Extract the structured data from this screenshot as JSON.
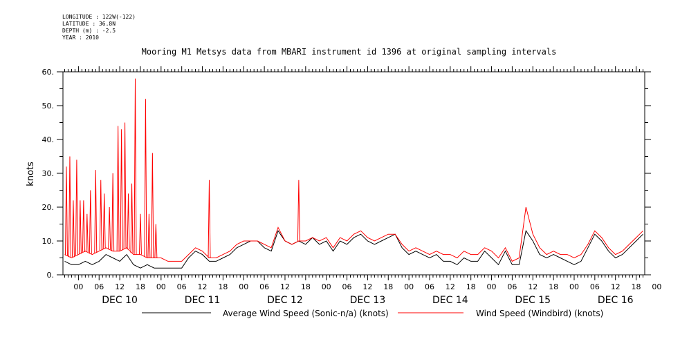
{
  "meta": {
    "longitude": "LONGITUDE : 122W(-122)",
    "latitude": "LATITUDE : 36.8N",
    "depth": "DEPTH (m) : -2.5",
    "year": "YEAR : 2010"
  },
  "chart_data": {
    "type": "line",
    "title": "Mooring M1 Metsys data from MBARI instrument id 1396 at original sampling intervals",
    "ylabel": "knots",
    "xlabel": "",
    "ylim": [
      0,
      60
    ],
    "yticks": [
      "0.",
      "10.",
      "20.",
      "30.",
      "40.",
      "50.",
      "60."
    ],
    "hour_tick_labels": [
      "00",
      "06",
      "12",
      "18",
      "00",
      "06",
      "12",
      "18",
      "00",
      "06",
      "12",
      "18",
      "00",
      "06",
      "12",
      "18",
      "00",
      "06",
      "12",
      "18",
      "00",
      "06",
      "12",
      "18",
      "00",
      "06",
      "12",
      "18",
      "00"
    ],
    "day_labels": [
      "DEC 10",
      "DEC 11",
      "DEC 12",
      "DEC 13",
      "DEC 14",
      "DEC 15",
      "DEC 16"
    ],
    "x_range_hours": [
      -4.5,
      164.5
    ],
    "grid": false,
    "legend_position": "bottom",
    "series": [
      {
        "name": "Average Wind Speed (Sonic-n/a) (knots)",
        "color": "#000000",
        "x": [
          -4,
          -2,
          0,
          2,
          4,
          6,
          8,
          10,
          12,
          14,
          16,
          18,
          20,
          22,
          24,
          26,
          28,
          30,
          32,
          34,
          36,
          38,
          40,
          42,
          44,
          46,
          48,
          50,
          52,
          54,
          56,
          58,
          60,
          62,
          64,
          66,
          68,
          70,
          72,
          74,
          76,
          78,
          80,
          82,
          84,
          86,
          88,
          90,
          92,
          94,
          96,
          98,
          100,
          102,
          104,
          106,
          108,
          110,
          112,
          114,
          116,
          118,
          120,
          122,
          124,
          126,
          128,
          130,
          132,
          134,
          136,
          138,
          140,
          142,
          144,
          146,
          148,
          150,
          152,
          154,
          156,
          158,
          160,
          162,
          164
        ],
        "values": [
          4,
          3,
          3,
          4,
          3,
          4,
          6,
          5,
          4,
          6,
          3,
          2,
          3,
          2,
          2,
          2,
          2,
          2,
          5,
          7,
          6,
          4,
          4,
          5,
          6,
          8,
          9,
          10,
          10,
          8,
          7,
          13,
          10,
          9,
          10,
          9,
          11,
          9,
          10,
          7,
          10,
          9,
          11,
          12,
          10,
          9,
          10,
          11,
          12,
          8,
          6,
          7,
          6,
          5,
          6,
          4,
          4,
          3,
          5,
          4,
          4,
          7,
          5,
          3,
          7,
          3,
          3,
          13,
          10,
          6,
          5,
          6,
          5,
          4,
          3,
          4,
          8,
          12,
          10,
          7,
          5,
          6,
          8,
          10,
          12
        ]
      },
      {
        "name": "Wind Speed (Windbird) (knots)",
        "color": "#ff0000",
        "x": [
          -4,
          -2,
          0,
          2,
          4,
          6,
          8,
          10,
          12,
          14,
          16,
          18,
          20,
          22,
          24,
          26,
          28,
          30,
          32,
          34,
          36,
          38,
          40,
          42,
          44,
          46,
          48,
          50,
          52,
          54,
          56,
          58,
          60,
          62,
          64,
          66,
          68,
          70,
          72,
          74,
          76,
          78,
          80,
          82,
          84,
          86,
          88,
          90,
          92,
          94,
          96,
          98,
          100,
          102,
          104,
          106,
          108,
          110,
          112,
          114,
          116,
          118,
          120,
          122,
          124,
          126,
          128,
          130,
          132,
          134,
          136,
          138,
          140,
          142,
          144,
          146,
          148,
          150,
          152,
          154,
          156,
          158,
          160,
          162,
          164
        ],
        "values": [
          6,
          5,
          6,
          7,
          6,
          7,
          8,
          7,
          7,
          8,
          6,
          6,
          5,
          5,
          5,
          4,
          4,
          4,
          6,
          8,
          7,
          5,
          5,
          6,
          7,
          9,
          10,
          10,
          10,
          9,
          8,
          14,
          10,
          9,
          10,
          10,
          11,
          10,
          11,
          8,
          11,
          10,
          12,
          13,
          11,
          10,
          11,
          12,
          12,
          9,
          7,
          8,
          7,
          6,
          7,
          6,
          6,
          5,
          7,
          6,
          6,
          8,
          7,
          5,
          8,
          4,
          5,
          20,
          12,
          8,
          6,
          7,
          6,
          6,
          5,
          6,
          9,
          13,
          11,
          8,
          6,
          7,
          9,
          11,
          13
        ]
      }
    ],
    "spikes": {
      "x": [
        -3.5,
        -2.5,
        -1.5,
        -0.5,
        0.5,
        1.5,
        2.5,
        3.5,
        5,
        6.5,
        7.5,
        9,
        10,
        11.5,
        12.5,
        13.5,
        14.5,
        15.5,
        16.5,
        18,
        19.5,
        20.5,
        21.5,
        22.5,
        38,
        64
      ],
      "values": [
        32,
        35,
        22,
        34,
        22,
        22,
        18,
        25,
        31,
        28,
        24,
        20,
        30,
        44,
        43,
        45,
        24,
        27,
        58,
        18,
        52,
        18,
        36,
        15,
        28,
        28
      ]
    }
  },
  "legend": {
    "series1": "Average Wind Speed (Sonic-n/a) (knots)",
    "series2": "Wind Speed (Windbird) (knots)"
  }
}
